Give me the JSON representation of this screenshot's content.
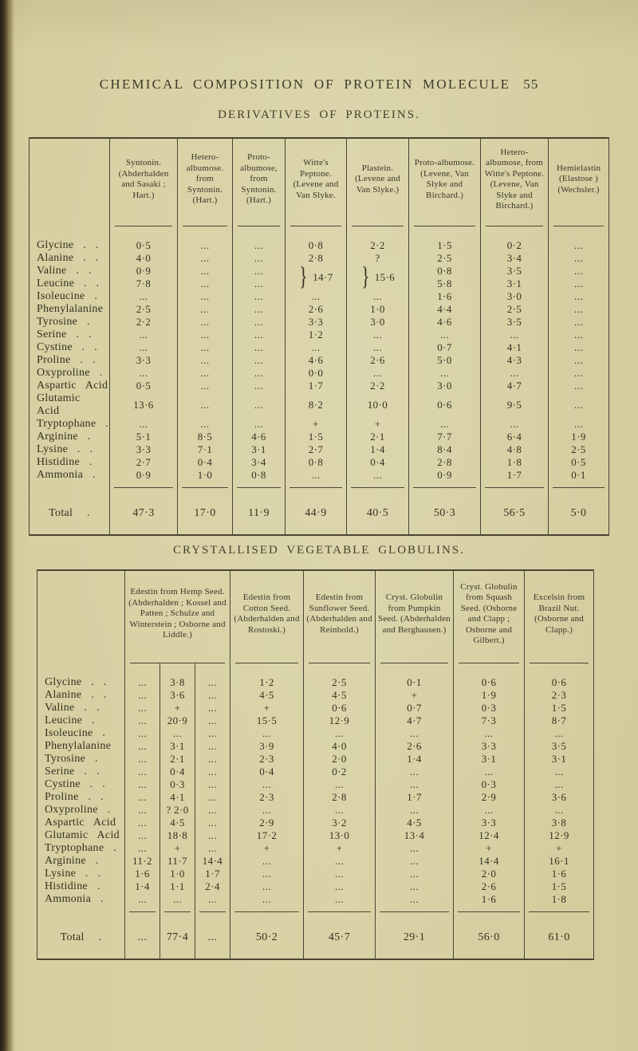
{
  "page": {
    "header_title": "CHEMICAL COMPOSITION OF PROTEIN MOLECULE",
    "page_number": "55"
  },
  "derivatives_table": {
    "title": "DERIVATIVES OF PROTEINS.",
    "headers": [
      {
        "text": ""
      },
      {
        "text": "Syntonin. (Abderhalden and Sasaki ; Hart.)"
      },
      {
        "text": "Hetero-albumose. from Syntonin. (Hart.)"
      },
      {
        "text": "Proto-albumose, from Syntonin. (Hart.)"
      },
      {
        "text": "Witte's Peptone. (Levene and Van Slyke."
      },
      {
        "text": "Plastein. (Levene and Van Slyke.)"
      },
      {
        "text": "Proto-albumose. (Levene, Van Slyke and Birchard.)"
      },
      {
        "text": "Hetero-albumose, from Witte's Peptone. (Levene, Van Slyke and Birchard.)"
      },
      {
        "text": "Hemielastin (Elastose ) (Wechsler.)"
      }
    ],
    "rows": [
      {
        "label": "Glycine . .",
        "cells": [
          "0·5",
          "...",
          "...",
          "0·8",
          "2·2",
          "1·5",
          "0·2",
          "..."
        ]
      },
      {
        "label": "Alanine . .",
        "cells": [
          "4·0",
          "...",
          "...",
          "2·8",
          "?",
          "2·5",
          "3·4",
          "..."
        ]
      },
      {
        "label": "Valine . .",
        "cells": [
          "0·9",
          "...",
          "...",
          "}14·7",
          "}15·6",
          "0·8",
          "3·5",
          "..."
        ]
      },
      {
        "label": "Leucine . .",
        "cells": [
          "7·8",
          "...",
          "...",
          "^",
          "^",
          "5·8",
          "3·1",
          "..."
        ]
      },
      {
        "label": "Isoleucine .",
        "cells": [
          "...",
          "...",
          "...",
          "...",
          "...",
          "1·6",
          "3·0",
          "..."
        ]
      },
      {
        "label": "Phenylalanine",
        "cells": [
          "2·5",
          "...",
          "...",
          "2·6",
          "1·0",
          "4·4",
          "2·5",
          "..."
        ]
      },
      {
        "label": "Tyrosine .",
        "cells": [
          "2·2",
          "...",
          "...",
          "3·3",
          "3·0",
          "4·6",
          "3·5",
          "..."
        ]
      },
      {
        "label": "Serine . .",
        "cells": [
          "...",
          "...",
          "...",
          "1·2",
          "...",
          "...",
          "...",
          "..."
        ]
      },
      {
        "label": "Cystine . .",
        "cells": [
          "...",
          "...",
          "...",
          "...",
          "...",
          "0·7",
          "4·1",
          "..."
        ]
      },
      {
        "label": "Proline . .",
        "cells": [
          "3·3",
          "...",
          "...",
          "4·6",
          "2·6",
          "5·0",
          "4·3",
          "..."
        ]
      },
      {
        "label": "Oxyproline .",
        "cells": [
          "...",
          "...",
          "...",
          "0·0",
          "...",
          "...",
          "...",
          "..."
        ]
      },
      {
        "label": "Aspartic Acid",
        "cells": [
          "0·5",
          "...",
          "...",
          "1·7",
          "2·2",
          "3·0",
          "4·7",
          "..."
        ]
      },
      {
        "label": "Glutamic Acid",
        "cells": [
          "13·6",
          "...",
          "...",
          "8·2",
          "10·0",
          "0·6",
          "9·5",
          "..."
        ]
      },
      {
        "label": "Tryptophane .",
        "cells": [
          "...",
          "...",
          "...",
          "+",
          "+",
          "...",
          "...",
          "..."
        ]
      },
      {
        "label": "Arginine .",
        "cells": [
          "5·1",
          "8·5",
          "4·6",
          "1·5",
          "2·1",
          "7·7",
          "6·4",
          "1·9"
        ]
      },
      {
        "label": "Lysine . .",
        "cells": [
          "3·3",
          "7·1",
          "3·1",
          "2·7",
          "1·4",
          "8·4",
          "4·8",
          "2·5"
        ]
      },
      {
        "label": "Histidine .",
        "cells": [
          "2·7",
          "0·4",
          "3·4",
          "0·8",
          "0·4",
          "2·8",
          "1·8",
          "0·5"
        ]
      },
      {
        "label": "Ammonia .",
        "cells": [
          "0·9",
          "1·0",
          "0·8",
          "...",
          "...",
          "0·9",
          "1·7",
          "0·1"
        ]
      }
    ],
    "total": {
      "label": "Total .",
      "cells": [
        "47·3",
        "17·0",
        "11·9",
        "44·9",
        "40·5",
        "50·3",
        "56·5",
        "5·0"
      ]
    }
  },
  "globulins_table": {
    "title": "CRYSTALLISED VEGETABLE GLOBULINS.",
    "headers": [
      {
        "text": ""
      },
      {
        "text": "Edestin from Hemp Seed. (Abderhalden ; Kossel and Patten ; Schulze and Winterstein ; Osborne and Liddle.)",
        "colspan": 3
      },
      {
        "text": "Edestin from Cotton Seed. (Abderhalden and Rostoski.)"
      },
      {
        "text": "Edestin from Sunflower Seed. (Abderhalden and Reinbold.)"
      },
      {
        "text": "Cryst. Globulin from Pumpkin Seed. (Abderhalden and Berghausen.)"
      },
      {
        "text": "Cryst. Globulin from Squash Seed. (Osborne and Clapp ; Osborne and Gilbert.)"
      },
      {
        "text": "Excelsin from Brazil Nut. (Osborne and Clapp.)"
      }
    ],
    "rows": [
      {
        "label": "Glycine . .",
        "cells": [
          "...",
          "3·8",
          "...",
          "1·2",
          "2·5",
          "0·1",
          "0·6",
          "0·6"
        ]
      },
      {
        "label": "Alanine . .",
        "cells": [
          "...",
          "3·6",
          "...",
          "4·5",
          "4·5",
          "+",
          "1·9",
          "2·3"
        ]
      },
      {
        "label": "Valine . .",
        "cells": [
          "...",
          "+",
          "...",
          "+",
          "0·6",
          "0·7",
          "0·3",
          "1·5"
        ]
      },
      {
        "label": "Leucine .",
        "cells": [
          "...",
          "20·9",
          "...",
          "15·5",
          "12·9",
          "4·7",
          "7·3",
          "8·7"
        ]
      },
      {
        "label": "Isoleucine .",
        "cells": [
          "...",
          "...",
          "...",
          "...",
          "...",
          "...",
          "...",
          "..."
        ]
      },
      {
        "label": "Phenylalanine",
        "cells": [
          "...",
          "3·1",
          "...",
          "3·9",
          "4·0",
          "2·6",
          "3·3",
          "3·5"
        ]
      },
      {
        "label": "Tyrosine .",
        "cells": [
          "...",
          "2·1",
          "...",
          "2·3",
          "2·0",
          "1·4",
          "3·1",
          "3·1"
        ]
      },
      {
        "label": "Serine . .",
        "cells": [
          "...",
          "0·4",
          "...",
          "0·4",
          "0·2",
          "...",
          "...",
          "..."
        ]
      },
      {
        "label": "Cystine . .",
        "cells": [
          "...",
          "0·3",
          "...",
          "...",
          "...",
          "...",
          "0·3",
          "..."
        ]
      },
      {
        "label": "Proline . .",
        "cells": [
          "...",
          "4·1",
          "...",
          "2·3",
          "2·8",
          "1·7",
          "2·9",
          "3·6"
        ]
      },
      {
        "label": "Oxyproline .",
        "cells": [
          "...",
          "? 2·0",
          "...",
          "...",
          "...",
          "...",
          "...",
          "..."
        ]
      },
      {
        "label": "Aspartic Acid",
        "cells": [
          "...",
          "4·5",
          "...",
          "2·9",
          "3·2",
          "4·5",
          "3·3",
          "3·8"
        ]
      },
      {
        "label": "Glutamic Acid",
        "cells": [
          "...",
          "18·8",
          "...",
          "17·2",
          "13·0",
          "13·4",
          "12·4",
          "12·9"
        ]
      },
      {
        "label": "Tryptophane .",
        "cells": [
          "...",
          "+",
          "...",
          "+",
          "+",
          "...",
          "+",
          "+"
        ]
      },
      {
        "label": "Arginine .",
        "cells": [
          "11·2",
          "11·7",
          "14·4",
          "...",
          "...",
          "...",
          "14·4",
          "16·1"
        ]
      },
      {
        "label": "Lysine . .",
        "cells": [
          "1·6",
          "1·0",
          "1·7",
          "...",
          "...",
          "...",
          "2·0",
          "1·6"
        ]
      },
      {
        "label": "Histidine .",
        "cells": [
          "1·4",
          "1·1",
          "2·4",
          "...",
          "...",
          "...",
          "2·6",
          "1·5"
        ]
      },
      {
        "label": "Ammonia .",
        "cells": [
          "...",
          "...",
          "...",
          "...",
          "...",
          "...",
          "1·6",
          "1·8"
        ]
      }
    ],
    "total": {
      "label": "Total .",
      "cells": [
        "...",
        "77·4",
        "...",
        "50·2",
        "45·7",
        "29·1",
        "56·0",
        "61·0"
      ]
    }
  }
}
